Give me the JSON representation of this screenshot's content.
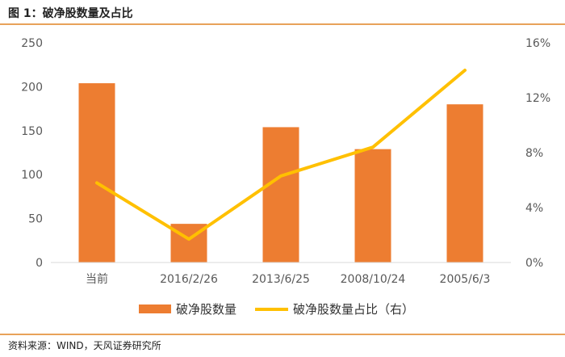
{
  "figure": {
    "title": "图 1：破净股数量及占比",
    "source": "资料来源：WIND，天风证券研究所"
  },
  "colors": {
    "bar": "#ED7D31",
    "line": "#FFC000",
    "axis": "#d9d9d9",
    "rule": "#e8a25a"
  },
  "chart_data": {
    "type": "bar",
    "categories": [
      "当前",
      "2016/2/26",
      "2013/6/25",
      "2008/10/24",
      "2005/6/3"
    ],
    "series": [
      {
        "name": "破净股数量",
        "type": "bar",
        "axis": "left",
        "values": [
          204,
          44,
          154,
          129,
          180
        ]
      },
      {
        "name": "破净股数量占比（右）",
        "type": "line",
        "axis": "right",
        "values": [
          5.8,
          1.7,
          6.3,
          8.4,
          14.0
        ]
      }
    ],
    "y_left": {
      "ylim": [
        0,
        250
      ],
      "ticks": [
        "0",
        "50",
        "100",
        "150",
        "200",
        "250"
      ]
    },
    "y_right": {
      "ylim": [
        0,
        16
      ],
      "ticks": [
        "0%",
        "4%",
        "8%",
        "12%",
        "16%"
      ]
    },
    "legend_position": "bottom",
    "grid": false
  }
}
